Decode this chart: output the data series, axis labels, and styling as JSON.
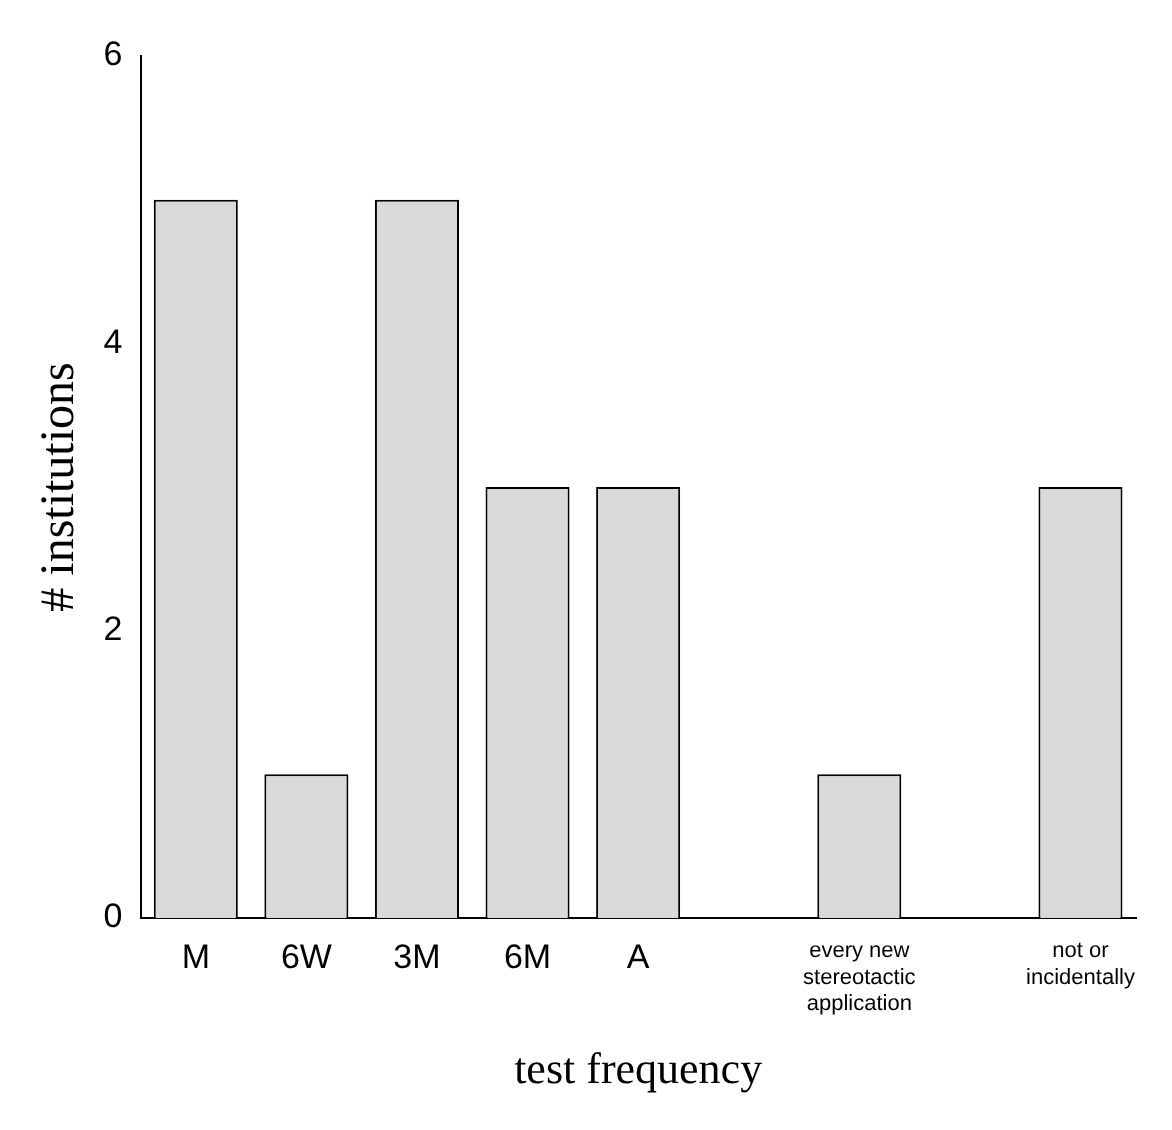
{
  "chart_data": {
    "type": "bar",
    "xlabel": "test frequency",
    "ylabel": "# institutions",
    "categories": [
      "M",
      "6W",
      "3M",
      "6M",
      "A",
      null,
      "every new stereotactic application",
      null,
      "not or incidentally"
    ],
    "values": [
      5,
      1,
      5,
      3,
      3,
      null,
      1,
      null,
      3
    ],
    "color": "#d9d9d9",
    "ylim": [
      0,
      6
    ],
    "yticks": [
      0,
      2,
      4,
      6
    ],
    "grid": false,
    "legend": false
  }
}
